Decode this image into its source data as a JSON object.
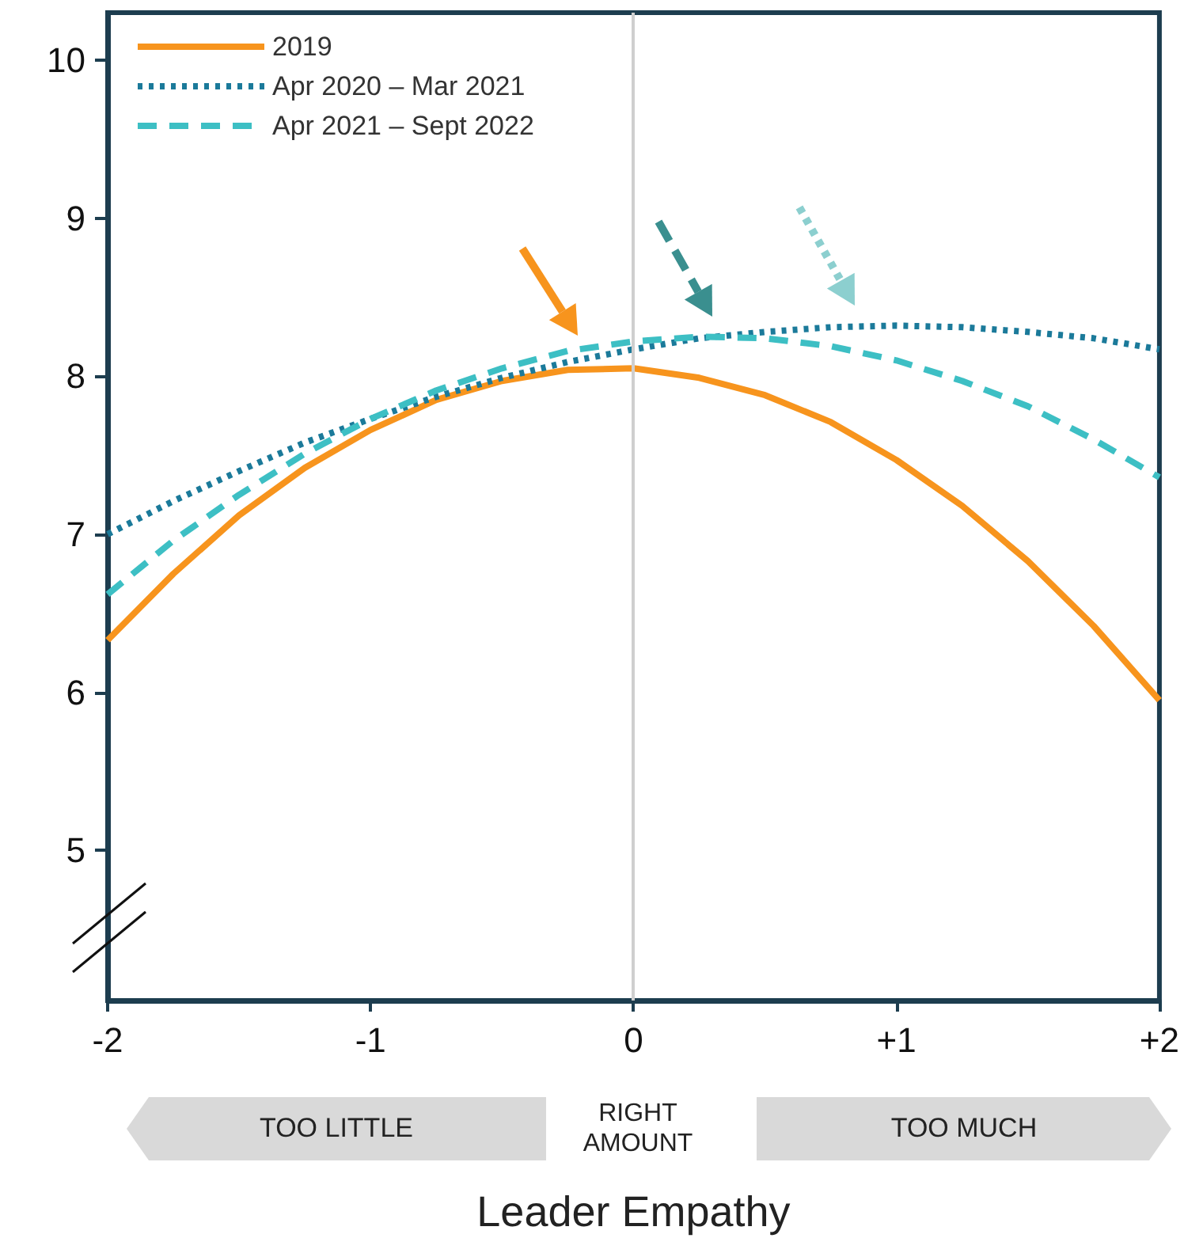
{
  "chart_data": {
    "type": "line",
    "xlabel": "Leader Empathy",
    "x": [
      -2,
      -1.75,
      -1.5,
      -1.25,
      -1,
      -0.75,
      -0.5,
      -0.25,
      0,
      0.25,
      0.5,
      0.75,
      1,
      1.25,
      1.5,
      1.75,
      2
    ],
    "series": [
      {
        "name": "2019",
        "color": "#f7941d",
        "line_style": "solid",
        "values": [
          6.33,
          6.75,
          7.12,
          7.42,
          7.66,
          7.85,
          7.97,
          8.04,
          8.05,
          7.99,
          7.88,
          7.71,
          7.47,
          7.18,
          6.83,
          6.42,
          5.95
        ]
      },
      {
        "name": "Apr 2020 – Mar 2021",
        "color": "#1b7a9a",
        "line_style": "dotted",
        "values": [
          7.0,
          7.21,
          7.4,
          7.58,
          7.73,
          7.87,
          7.99,
          8.09,
          8.17,
          8.24,
          8.28,
          8.31,
          8.32,
          8.31,
          8.28,
          8.24,
          8.17
        ]
      },
      {
        "name": "Apr 2021 – Sept 2022",
        "color": "#3dbfc4",
        "line_style": "dashed",
        "values": [
          6.62,
          6.96,
          7.25,
          7.51,
          7.73,
          7.91,
          8.05,
          8.16,
          8.22,
          8.25,
          8.24,
          8.19,
          8.1,
          7.97,
          7.81,
          7.6,
          7.36
        ]
      }
    ],
    "xlim": [
      -2,
      2
    ],
    "xticks": [
      -2,
      -1,
      0,
      {
        "value": 1,
        "label": "+1"
      },
      {
        "value": 2,
        "label": "+2"
      }
    ],
    "ylim": [
      4.05,
      10.3
    ],
    "yticks": [
      5,
      6,
      7,
      8,
      9,
      10
    ],
    "ref_lines": [
      {
        "axis": "x",
        "value": 0,
        "color": "#cfcfcf"
      }
    ],
    "annotations": [
      "TOO LITTLE",
      "RIGHT AMOUNT",
      "TOO MUCH"
    ],
    "legend": "top left",
    "marker": "none",
    "grid": false
  }
}
